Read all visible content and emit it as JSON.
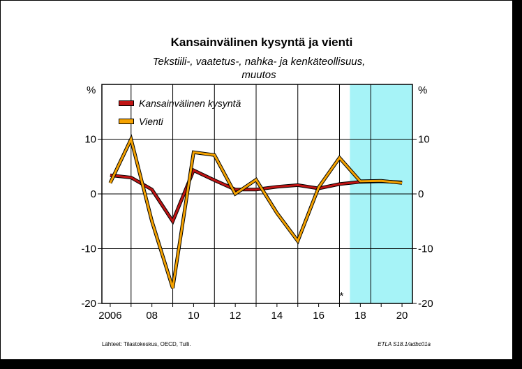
{
  "chart_data": {
    "type": "line",
    "title": "Kansainvälinen kysyntä ja vienti",
    "subtitle_line1": "Tekstiili-, vaatetus-, nahka- ja kenkäteollisuus,",
    "subtitle_line2": "muutos",
    "ylabel_left": "%",
    "ylabel_right": "%",
    "ylim": [
      -20,
      20
    ],
    "yticks": [
      10,
      0,
      -10,
      -20
    ],
    "ytick_labels": [
      "10",
      "0",
      "-10",
      "-20"
    ],
    "x": [
      2006,
      2007,
      2008,
      2009,
      2010,
      2011,
      2012,
      2013,
      2014,
      2015,
      2016,
      2017,
      2018,
      2019,
      2020
    ],
    "xlim": [
      2005.6,
      2020.5
    ],
    "xtick_values": [
      2006,
      2008,
      2010,
      2012,
      2014,
      2016,
      2018,
      2020
    ],
    "xtick_labels": [
      "2006",
      "08",
      "10",
      "12",
      "14",
      "16",
      "18",
      "20"
    ],
    "forecast_start": 2017.5,
    "forecast_mid": 2018.5,
    "forecast_color": "#a6f3f7",
    "forecast_marker": "*",
    "forecast_marker_x": 2017,
    "grid_x": true,
    "grid_y": true,
    "legend_position": "top-left",
    "series": [
      {
        "name": "Kansainvälinen kysyntä",
        "color": "#c01414",
        "values": [
          3.4,
          3.0,
          0.8,
          -5.0,
          4.3,
          2.5,
          0.8,
          0.8,
          1.3,
          1.6,
          1.0,
          1.8,
          2.2,
          2.3,
          2.1
        ]
      },
      {
        "name": "Vienti",
        "color": "#f5a200",
        "values": [
          2.0,
          10.0,
          -5.0,
          -17.2,
          7.6,
          7.1,
          0.0,
          2.6,
          -3.5,
          -8.6,
          1.2,
          6.6,
          2.3,
          2.4,
          2.0
        ]
      }
    ]
  },
  "footer": {
    "sources": "Lähteet:   Tilastokeskus, OECD, Tulli.",
    "code": "ETLA S18.1/adbc01a"
  }
}
